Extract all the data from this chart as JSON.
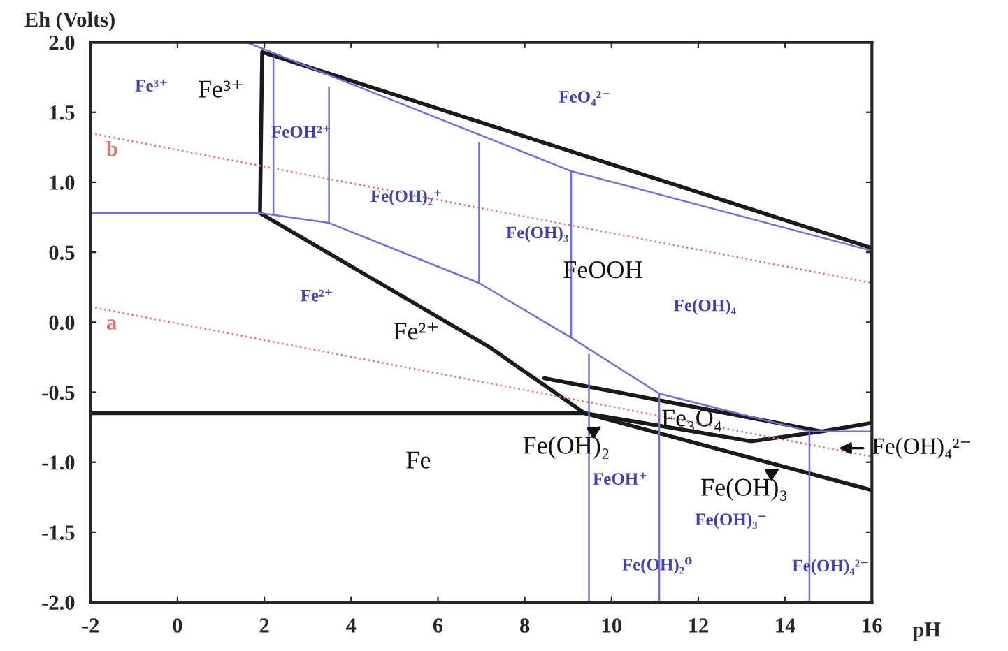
{
  "chart_data": {
    "type": "line",
    "xlabel": "pH",
    "ylabel": "Eh (Volts)",
    "xlim": [
      -2,
      16
    ],
    "ylim": [
      -2,
      2
    ],
    "xticks": [
      -2,
      0,
      2,
      4,
      6,
      8,
      10,
      12,
      14,
      16
    ],
    "yticks": [
      {
        "value": -2,
        "label": "-2.0"
      },
      {
        "value": -1.5,
        "label": "-1.5"
      },
      {
        "value": -1,
        "label": "-1.0"
      },
      {
        "value": -0.5,
        "label": "-0.5"
      },
      {
        "value": 0,
        "label": "0.0"
      },
      {
        "value": 0.5,
        "label": "0.5"
      },
      {
        "value": 1,
        "label": "1.0"
      },
      {
        "value": 1.5,
        "label": "1.5"
      },
      {
        "value": 2,
        "label": "2.0"
      }
    ],
    "grid": false,
    "legend": false,
    "series": [
      {
        "color": "#1a1a1a",
        "x": [
          -2,
          9.38,
          16
        ],
        "values": [
          -0.65,
          -0.65,
          -1.2
        ]
      },
      {
        "color": "#1a1a1a",
        "x": [
          8.45,
          14.84,
          16,
          16,
          1.95,
          1.9,
          7.2,
          9.38,
          13.22,
          14.84
        ],
        "values": [
          -0.4,
          -0.78,
          -0.72,
          0.53,
          1.93,
          0.78,
          -0.18,
          -0.65,
          -0.85,
          -0.78
        ]
      },
      {
        "color": "#7070d8",
        "x": [
          1.59,
          9.07,
          16
        ],
        "values": [
          2.0,
          1.08,
          0.51
        ]
      },
      {
        "color": "#7070d8",
        "x": [
          -2,
          1.9,
          3.49,
          6.95,
          9.07,
          11.1,
          14.56,
          16
        ],
        "values": [
          0.78,
          0.78,
          0.71,
          0.28,
          -0.11,
          -0.51,
          -0.78,
          -0.78
        ]
      },
      {
        "color": "#7070d8",
        "x": [
          2.21,
          2.21
        ],
        "values": [
          1.9,
          0.78
        ]
      },
      {
        "color": "#7070d8",
        "x": [
          3.49,
          3.49
        ],
        "values": [
          1.68,
          0.71
        ]
      },
      {
        "color": "#7070d8",
        "x": [
          6.95,
          6.95
        ],
        "values": [
          1.28,
          0.28
        ]
      },
      {
        "color": "#7070d8",
        "x": [
          9.07,
          9.07
        ],
        "values": [
          1.08,
          -0.11
        ]
      },
      {
        "color": "#7070d8",
        "x": [
          9.48,
          9.48
        ],
        "values": [
          -0.23,
          -2.0
        ]
      },
      {
        "color": "#7070d8",
        "x": [
          11.1,
          11.1
        ],
        "values": [
          -0.51,
          -2.0
        ]
      },
      {
        "color": "#7070d8",
        "x": [
          14.56,
          14.56
        ],
        "values": [
          -0.78,
          -2.0
        ]
      },
      {
        "name": "b",
        "color": "#e07070",
        "line_style": "dotted",
        "x": [
          -2,
          16
        ],
        "values": [
          1.35,
          0.28
        ]
      },
      {
        "name": "a",
        "color": "#e07070",
        "line_style": "dotted",
        "x": [
          -2,
          16
        ],
        "values": [
          0.11,
          -0.96
        ]
      }
    ],
    "annotations": [
      "Fe³⁺",
      "FeOOH",
      "Fe²⁺",
      "Fe",
      "Fe₃O₄",
      "Fe³⁺",
      "FeOH²⁺",
      "Fe(OH)₂⁺",
      "FeO₄²⁻",
      "Fe(OH)₃",
      "Fe(OH)₄",
      "Fe²⁺",
      "FeOH⁺",
      "Fe(OH)₃⁻",
      "Fe(OH)₂⁰",
      "Fe(OH)₄²⁻",
      {
        "text": "Fe(OH)₂",
        "x": 9.85,
        "y": -0.73
      },
      {
        "text": "Fe(OH)₃",
        "x": 13.95,
        "y": -1.03
      },
      {
        "text": "Fe(OH)₄²⁻",
        "x": 15.15,
        "y": -0.9
      }
    ]
  }
}
